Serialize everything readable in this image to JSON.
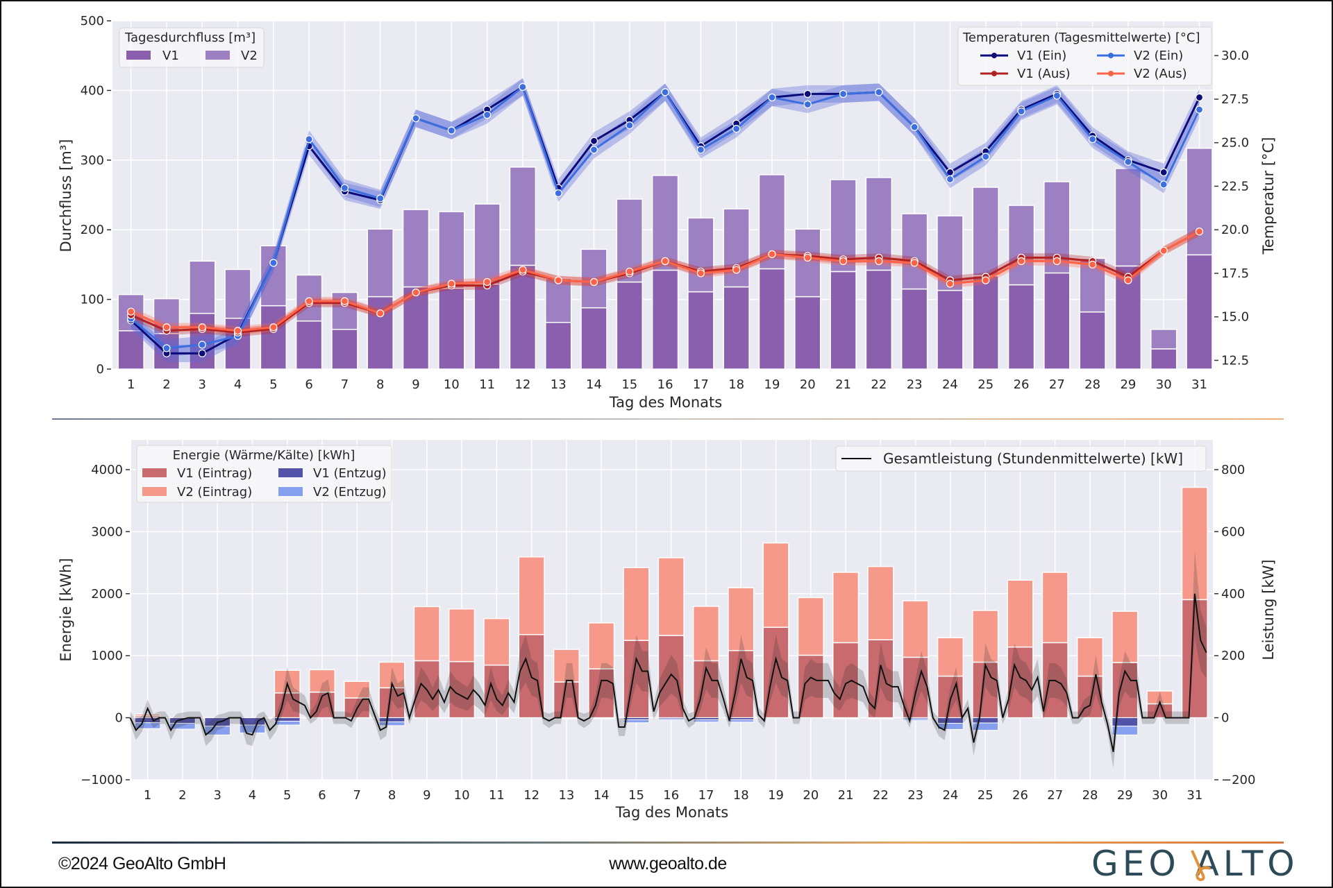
{
  "chart_data": [
    {
      "type": "bar+line",
      "xlabel": "Tag des Monats",
      "ylabel": "Durchfluss [m³]",
      "y2label": "Temperatur [°C]",
      "x": [
        1,
        2,
        3,
        4,
        5,
        6,
        7,
        8,
        9,
        10,
        11,
        12,
        13,
        14,
        15,
        16,
        17,
        18,
        19,
        20,
        21,
        22,
        23,
        24,
        25,
        26,
        27,
        28,
        29,
        30,
        31
      ],
      "x_ticks": [
        "1",
        "2",
        "3",
        "4",
        "5",
        "6",
        "7",
        "8",
        "9",
        "10",
        "11",
        "12",
        "13",
        "14",
        "15",
        "16",
        "17",
        "18",
        "19",
        "20",
        "21",
        "22",
        "23",
        "24",
        "25",
        "26",
        "27",
        "28",
        "29",
        "30",
        "31"
      ],
      "ylim": [
        0,
        500
      ],
      "y_ticks": [
        "0",
        "100",
        "200",
        "300",
        "400",
        "500"
      ],
      "y_tick_values": [
        0,
        100,
        200,
        300,
        400,
        500
      ],
      "y2lim": [
        12,
        32
      ],
      "y2_ticks": [
        "12.5",
        "15.0",
        "17.5",
        "20.0",
        "22.5",
        "25.0",
        "27.5",
        "30.0"
      ],
      "y2_tick_values": [
        12.5,
        15,
        17.5,
        20,
        22.5,
        25,
        27.5,
        30
      ],
      "grid": true,
      "bar_legend": {
        "title": "Tagesdurchfluss [m³]",
        "placement": "top-left"
      },
      "bars_stacked": [
        {
          "name": "V1",
          "color": "#8a5fad",
          "values": [
            55,
            51,
            80,
            73,
            91,
            69,
            57,
            104,
            118,
            116,
            122,
            149,
            67,
            88,
            125,
            142,
            111,
            118,
            144,
            104,
            140,
            142,
            115,
            113,
            134,
            121,
            138,
            82,
            148,
            29,
            164
          ]
        },
        {
          "name": "V2",
          "color": "#9d80c1",
          "values": [
            52,
            50,
            75,
            70,
            86,
            66,
            53,
            97,
            111,
            110,
            115,
            141,
            63,
            84,
            119,
            136,
            106,
            112,
            135,
            97,
            132,
            133,
            108,
            107,
            127,
            114,
            131,
            77,
            140,
            28,
            153
          ]
        }
      ],
      "line_legend": {
        "title": "Temperaturen (Tagesmittelwerte) [°C]",
        "placement": "top-right"
      },
      "lines": [
        {
          "name": "V1 (Ein)",
          "color": "#0b0b7a",
          "values": [
            14.8,
            12.9,
            12.9,
            14.0,
            18.1,
            24.8,
            22.2,
            21.7,
            26.4,
            25.7,
            26.9,
            28.2,
            22.4,
            25.1,
            26.3,
            27.9,
            24.8,
            26.1,
            27.6,
            27.8,
            27.8,
            27.9,
            25.9,
            23.3,
            24.5,
            26.9,
            27.8,
            25.4,
            24.0,
            23.3,
            27.6
          ]
        },
        {
          "name": "V2 (Ein)",
          "color": "#3d6ee0",
          "values": [
            14.9,
            13.2,
            13.4,
            13.9,
            18.1,
            25.2,
            22.4,
            21.8,
            26.4,
            25.7,
            26.6,
            28.2,
            22.1,
            24.6,
            26.0,
            27.9,
            24.6,
            25.8,
            27.6,
            27.2,
            27.8,
            27.9,
            25.9,
            22.9,
            24.2,
            26.8,
            27.7,
            25.2,
            23.9,
            22.6,
            26.9
          ]
        },
        {
          "name": "V1 (Aus)",
          "color": "#b22222",
          "values": [
            15.1,
            14.2,
            14.3,
            14.1,
            14.3,
            15.8,
            15.8,
            15.2,
            16.4,
            16.8,
            16.8,
            17.6,
            17.1,
            17.0,
            17.5,
            18.2,
            17.6,
            17.8,
            18.6,
            18.5,
            18.3,
            18.4,
            18.2,
            17.1,
            17.3,
            18.4,
            18.4,
            18.2,
            17.3,
            18.8,
            19.9
          ]
        },
        {
          "name": "V2 (Aus)",
          "color": "#ff6347",
          "values": [
            15.3,
            14.4,
            14.4,
            14.2,
            14.4,
            15.9,
            15.9,
            15.2,
            16.4,
            16.9,
            17.0,
            17.7,
            17.1,
            17.0,
            17.6,
            18.2,
            17.5,
            17.7,
            18.6,
            18.4,
            18.2,
            18.2,
            18.1,
            16.9,
            17.1,
            18.2,
            18.2,
            18.0,
            17.1,
            18.8,
            19.9
          ]
        }
      ]
    },
    {
      "type": "bar+line",
      "xlabel": "Tag des Monats",
      "ylabel": "Energie [kWh]",
      "y2label": "Leistung [kW]",
      "x": [
        1,
        2,
        3,
        4,
        5,
        6,
        7,
        8,
        9,
        10,
        11,
        12,
        13,
        14,
        15,
        16,
        17,
        18,
        19,
        20,
        21,
        22,
        23,
        24,
        25,
        26,
        27,
        28,
        29,
        30,
        31
      ],
      "x_ticks": [
        "1",
        "2",
        "3",
        "4",
        "5",
        "6",
        "7",
        "8",
        "9",
        "10",
        "11",
        "12",
        "13",
        "14",
        "15",
        "16",
        "17",
        "18",
        "19",
        "20",
        "21",
        "22",
        "23",
        "24",
        "25",
        "26",
        "27",
        "28",
        "29",
        "30",
        "31"
      ],
      "ylim": [
        -1000,
        4480
      ],
      "y_ticks": [
        "−1000",
        "0",
        "1000",
        "2000",
        "3000",
        "4000"
      ],
      "y_tick_values": [
        -1000,
        0,
        1000,
        2000,
        3000,
        4000
      ],
      "y2lim": [
        -200,
        896
      ],
      "y2_ticks": [
        "−200",
        "0",
        "200",
        "400",
        "600",
        "800"
      ],
      "y2_tick_values": [
        -200,
        0,
        200,
        400,
        600,
        800
      ],
      "grid": true,
      "bar_legend": {
        "title": "Energie (Wärme/Kälte) [kWh]",
        "placement": "top-left"
      },
      "bars_positive_stacked": [
        {
          "name": "V1 (Eintrag)",
          "color": "#c86a6e",
          "values": [
            30,
            0,
            0,
            0,
            400,
            413,
            319,
            483,
            919,
            905,
            849,
            1341,
            577,
            788,
            1247,
            1327,
            919,
            1083,
            1458,
            1008,
            1210,
            1257,
            975,
            671,
            896,
            1140,
            1210,
            671,
            891,
            225,
            1904
          ]
        },
        {
          "name": "V2 (Eintrag)",
          "color": "#f7998a",
          "values": [
            30,
            0,
            0,
            0,
            365,
            361,
            267,
            413,
            872,
            849,
            750,
            1252,
            525,
            741,
            1173,
            1252,
            877,
            1013,
            1360,
            929,
            1135,
            1181,
            910,
            619,
            834,
            1078,
            1135,
            619,
            825,
            206,
            1810
          ]
        }
      ],
      "bars_negative_stacked": [
        {
          "name": "V1 (Entzug)",
          "color": "#5252a8",
          "values": [
            -80,
            -90,
            -136,
            -117,
            -56,
            0,
            0,
            -66,
            0,
            0,
            0,
            0,
            -10,
            -10,
            -33,
            -20,
            -33,
            -33,
            0,
            0,
            -10,
            -10,
            -20,
            -89,
            -84,
            0,
            0,
            0,
            -136,
            0,
            0
          ]
        },
        {
          "name": "V2 (Entzug)",
          "color": "#86a0ef",
          "values": [
            -95,
            -93,
            -141,
            -127,
            -61,
            0,
            0,
            -61,
            0,
            0,
            0,
            0,
            -10,
            -10,
            -47,
            -20,
            -37,
            -37,
            0,
            0,
            -10,
            -10,
            -25,
            -99,
            -118,
            0,
            0,
            0,
            -141,
            0,
            0
          ]
        }
      ],
      "line_legend": {
        "placement": "top-right"
      },
      "line": {
        "name": "Gesamtleistung (Stundenmittelwerte) [kW]",
        "color": "#111111",
        "sample_hours": [
          0,
          4,
          8,
          12,
          16,
          20
        ],
        "values_per_day": [
          [
            0,
            -40,
            -20,
            30,
            -10,
            0
          ],
          [
            0,
            -40,
            -10,
            -5,
            0,
            0
          ],
          [
            0,
            -55,
            -40,
            -15,
            -10,
            0
          ],
          [
            0,
            0,
            -50,
            -55,
            -10,
            0
          ],
          [
            -40,
            -20,
            30,
            110,
            60,
            50
          ],
          [
            40,
            0,
            20,
            70,
            80,
            0
          ],
          [
            0,
            0,
            -10,
            30,
            60,
            60
          ],
          [
            10,
            -40,
            -30,
            110,
            70,
            80
          ],
          [
            0,
            60,
            110,
            90,
            60,
            90
          ],
          [
            50,
            100,
            80,
            70,
            60,
            90
          ],
          [
            70,
            40,
            110,
            60,
            40,
            80
          ],
          [
            50,
            150,
            190,
            130,
            120,
            0
          ],
          [
            -10,
            0,
            0,
            120,
            120,
            0
          ],
          [
            -10,
            0,
            40,
            120,
            120,
            110
          ],
          [
            -30,
            -30,
            80,
            190,
            150,
            150
          ],
          [
            20,
            80,
            110,
            140,
            120,
            30
          ],
          [
            -10,
            0,
            60,
            160,
            120,
            120
          ],
          [
            60,
            -10,
            80,
            190,
            130,
            120
          ],
          [
            10,
            -10,
            100,
            190,
            130,
            120
          ],
          [
            0,
            0,
            110,
            130,
            120,
            120
          ],
          [
            120,
            80,
            60,
            110,
            120,
            110
          ],
          [
            100,
            50,
            30,
            170,
            110,
            100
          ],
          [
            100,
            40,
            -10,
            80,
            150,
            100
          ],
          [
            0,
            -30,
            -40,
            60,
            110,
            0
          ],
          [
            30,
            -80,
            0,
            170,
            130,
            120
          ],
          [
            0,
            60,
            170,
            130,
            120,
            90
          ],
          [
            130,
            20,
            120,
            120,
            110,
            80
          ],
          [
            0,
            0,
            30,
            40,
            140,
            50
          ],
          [
            -20,
            -110,
            80,
            150,
            120,
            120
          ],
          [
            0,
            0,
            0,
            50,
            0,
            0
          ],
          [
            0,
            0,
            0,
            400,
            250,
            210
          ]
        ]
      }
    }
  ],
  "footer": {
    "copyright": "©2024 GeoAlto  GmbH",
    "website": "www.geoalto.de",
    "logo_text": "GEO ALTO"
  },
  "colors": {
    "plot_background": "#eaeaf2",
    "grid": "#ffffff",
    "logo": "#2c4a57",
    "logo_accent": "#e0913a"
  }
}
